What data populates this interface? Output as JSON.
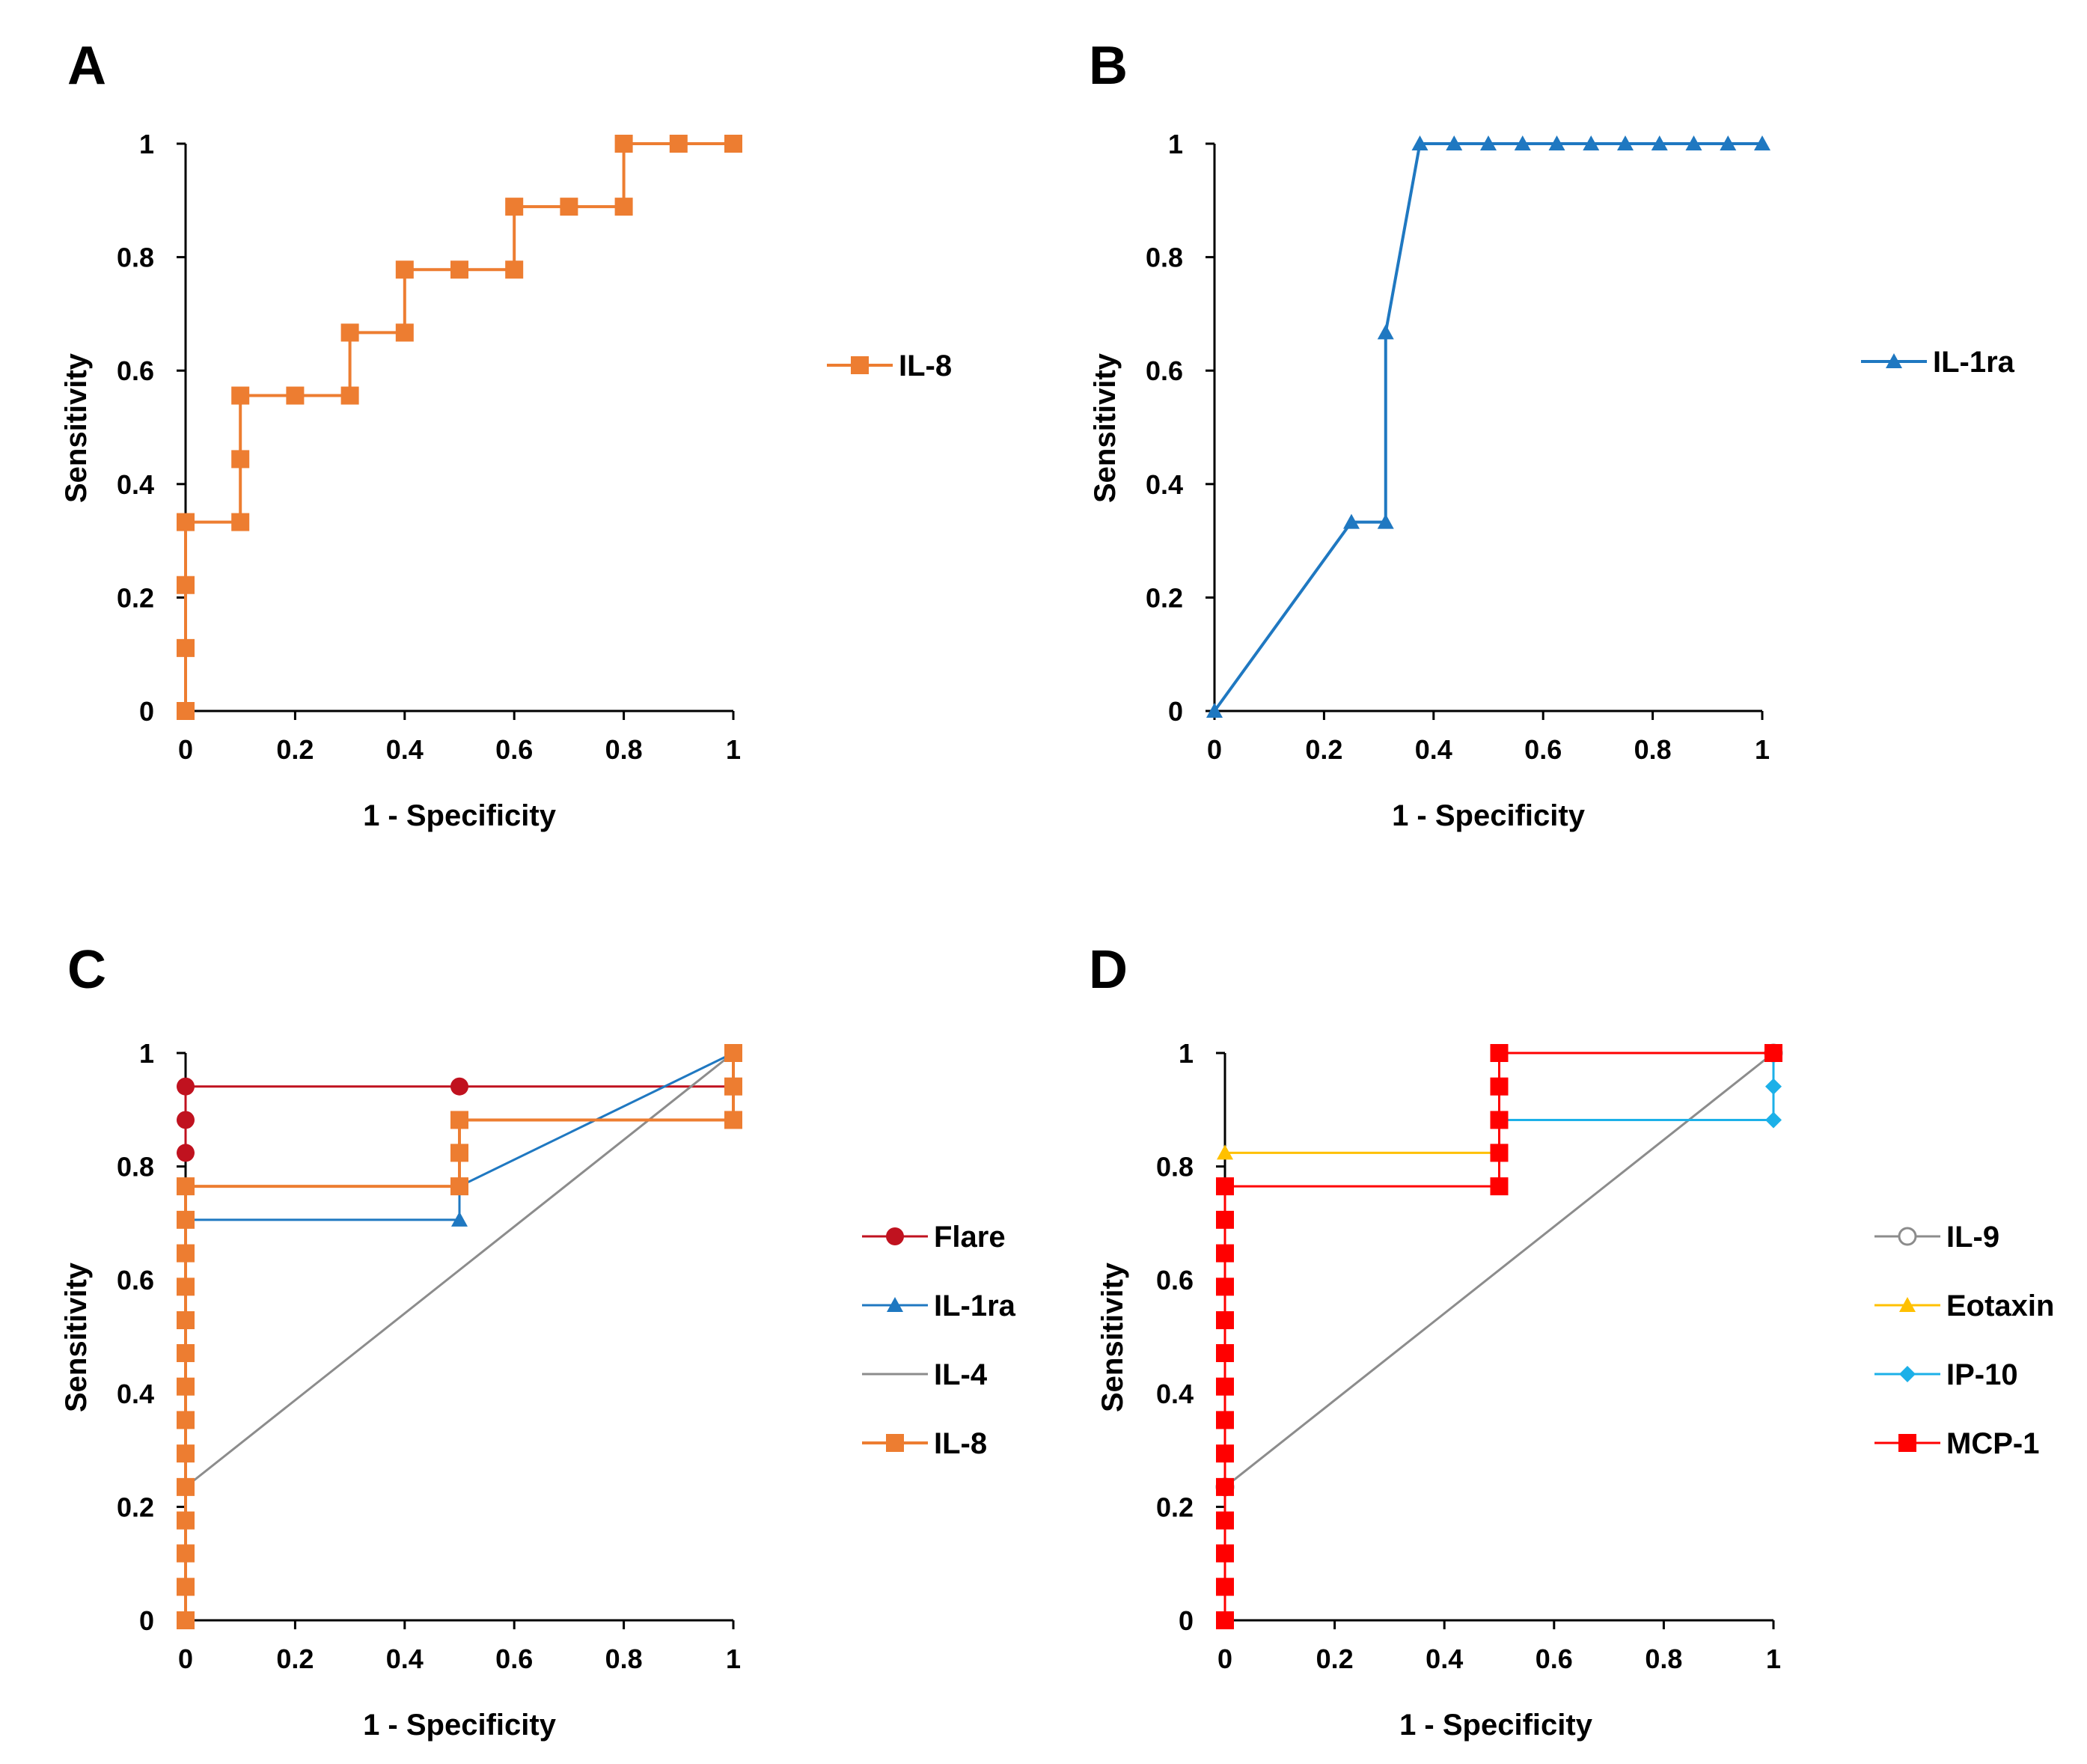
{
  "chart_data": [
    {
      "panel": "A",
      "type": "line",
      "xlabel": "1 - Specificity",
      "ylabel": "Sensitivity",
      "xlim": [
        0,
        1
      ],
      "ylim": [
        0,
        1
      ],
      "xticks": [
        "0",
        "0.2",
        "0.4",
        "0.6",
        "0.8",
        "1"
      ],
      "yticks": [
        "0",
        "0.2",
        "0.4",
        "0.6",
        "0.8",
        "1"
      ],
      "legend_position": "right",
      "series": [
        {
          "name": "IL-8",
          "color": "#ED7D31",
          "marker": "square",
          "width": 4,
          "points": [
            [
              0,
              0
            ],
            [
              0,
              0.111
            ],
            [
              0,
              0.222
            ],
            [
              0,
              0.333
            ],
            [
              0.1,
              0.333
            ],
            [
              0.1,
              0.444
            ],
            [
              0.1,
              0.556
            ],
            [
              0.2,
              0.556
            ],
            [
              0.3,
              0.556
            ],
            [
              0.3,
              0.667
            ],
            [
              0.4,
              0.667
            ],
            [
              0.4,
              0.778
            ],
            [
              0.5,
              0.778
            ],
            [
              0.6,
              0.778
            ],
            [
              0.6,
              0.889
            ],
            [
              0.7,
              0.889
            ],
            [
              0.8,
              0.889
            ],
            [
              0.8,
              1
            ],
            [
              0.9,
              1
            ],
            [
              1,
              1
            ]
          ]
        }
      ]
    },
    {
      "panel": "B",
      "type": "line",
      "xlabel": "1 - Specificity",
      "ylabel": "Sensitivity",
      "xlim": [
        0,
        1
      ],
      "ylim": [
        0,
        1
      ],
      "xticks": [
        "0",
        "0.2",
        "0.4",
        "0.6",
        "0.8",
        "1"
      ],
      "yticks": [
        "0",
        "0.2",
        "0.4",
        "0.6",
        "0.8",
        "1"
      ],
      "legend_position": "right",
      "series": [
        {
          "name": "IL-1ra",
          "color": "#1F78C1",
          "marker": "triangle",
          "width": 4,
          "points": [
            [
              0,
              0
            ],
            [
              0.25,
              0.333
            ],
            [
              0.3125,
              0.333
            ],
            [
              0.3125,
              0.667
            ],
            [
              0.375,
              1
            ],
            [
              0.4375,
              1
            ],
            [
              0.5,
              1
            ],
            [
              0.5625,
              1
            ],
            [
              0.625,
              1
            ],
            [
              0.6875,
              1
            ],
            [
              0.75,
              1
            ],
            [
              0.8125,
              1
            ],
            [
              0.875,
              1
            ],
            [
              0.9375,
              1
            ],
            [
              1,
              1
            ]
          ]
        }
      ]
    },
    {
      "panel": "C",
      "type": "line",
      "xlabel": "1 - Specificity",
      "ylabel": "Sensitivity",
      "xlim": [
        0,
        1
      ],
      "ylim": [
        0,
        1
      ],
      "xticks": [
        "0",
        "0.2",
        "0.4",
        "0.6",
        "0.8",
        "1"
      ],
      "yticks": [
        "0",
        "0.2",
        "0.4",
        "0.6",
        "0.8",
        "1"
      ],
      "legend_position": "right",
      "series": [
        {
          "name": "Flare",
          "color": "#C0121F",
          "marker": "circle",
          "width": 3,
          "points": [
            [
              0,
              0.824
            ],
            [
              0,
              0.882
            ],
            [
              0,
              0.941
            ],
            [
              0.5,
              0.941
            ],
            [
              1,
              0.941
            ]
          ]
        },
        {
          "name": "IL-1ra",
          "color": "#1F78C1",
          "marker": "triangle",
          "width": 3,
          "points": [
            [
              0,
              0.706
            ],
            [
              0.5,
              0.706
            ],
            [
              0.5,
              0.765
            ],
            [
              1,
              1
            ]
          ]
        },
        {
          "name": "IL-4",
          "color": "#8C8C8C",
          "marker": "none",
          "width": 3,
          "points": [
            [
              0,
              0.235
            ],
            [
              1,
              1
            ]
          ]
        },
        {
          "name": "IL-8",
          "color": "#ED7D31",
          "marker": "square",
          "width": 4,
          "points": [
            [
              0,
              0
            ],
            [
              0,
              0.059
            ],
            [
              0,
              0.118
            ],
            [
              0,
              0.176
            ],
            [
              0,
              0.235
            ],
            [
              0,
              0.294
            ],
            [
              0,
              0.353
            ],
            [
              0,
              0.412
            ],
            [
              0,
              0.471
            ],
            [
              0,
              0.529
            ],
            [
              0,
              0.588
            ],
            [
              0,
              0.647
            ],
            [
              0,
              0.706
            ],
            [
              0,
              0.765
            ],
            [
              0.5,
              0.765
            ],
            [
              0.5,
              0.824
            ],
            [
              0.5,
              0.882
            ],
            [
              1,
              0.882
            ],
            [
              1,
              0.941
            ],
            [
              1,
              1
            ]
          ]
        }
      ]
    },
    {
      "panel": "D",
      "type": "line",
      "xlabel": "1 - Specificity",
      "ylabel": "Sensitivity",
      "xlim": [
        0,
        1
      ],
      "ylim": [
        0,
        1
      ],
      "xticks": [
        "0",
        "0.2",
        "0.4",
        "0.6",
        "0.8",
        "1"
      ],
      "yticks": [
        "0",
        "0.2",
        "0.4",
        "0.6",
        "0.8",
        "1"
      ],
      "legend_position": "right",
      "series": [
        {
          "name": "IL-9",
          "color": "#8C8C8C",
          "marker": "open-circle",
          "width": 3,
          "points": [
            [
              0,
              0.235
            ],
            [
              1,
              1
            ]
          ]
        },
        {
          "name": "Eotaxin",
          "color": "#FFC000",
          "marker": "triangle",
          "width": 3,
          "points": [
            [
              0,
              0.824
            ],
            [
              0.5,
              0.824
            ]
          ]
        },
        {
          "name": "IP-10",
          "color": "#1CB0E8",
          "marker": "diamond",
          "width": 3,
          "points": [
            [
              0.5,
              0.882
            ],
            [
              1,
              0.882
            ],
            [
              1,
              0.941
            ],
            [
              1,
              1
            ]
          ]
        },
        {
          "name": "MCP-1",
          "color": "#FF0000",
          "marker": "square",
          "width": 3,
          "points": [
            [
              0,
              0
            ],
            [
              0,
              0.059
            ],
            [
              0,
              0.118
            ],
            [
              0,
              0.176
            ],
            [
              0,
              0.235
            ],
            [
              0,
              0.294
            ],
            [
              0,
              0.353
            ],
            [
              0,
              0.412
            ],
            [
              0,
              0.471
            ],
            [
              0,
              0.529
            ],
            [
              0,
              0.588
            ],
            [
              0,
              0.647
            ],
            [
              0,
              0.706
            ],
            [
              0,
              0.765
            ],
            [
              0.5,
              0.765
            ],
            [
              0.5,
              0.824
            ],
            [
              0.5,
              0.882
            ],
            [
              0.5,
              0.941
            ],
            [
              0.5,
              1
            ],
            [
              1,
              1
            ]
          ]
        }
      ]
    }
  ]
}
